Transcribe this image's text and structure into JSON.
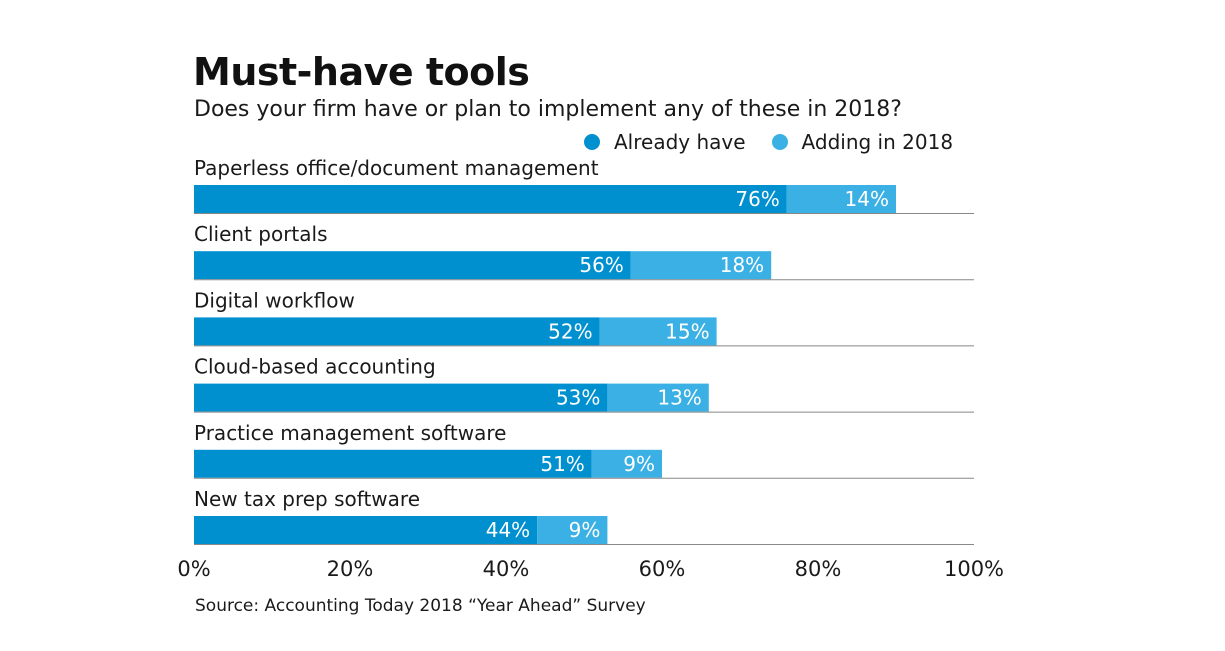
{
  "chart_data": {
    "type": "bar",
    "orientation": "horizontal",
    "stacked": true,
    "title": "Must-have tools",
    "subtitle": "Does your firm have or plan to implement any of these in 2018?",
    "source": "Source: Accounting Today 2018 “Year Ahead” Survey",
    "categories": [
      "Paperless office/document management",
      "Client portals",
      "Digital workflow",
      "Cloud-based accounting",
      "Practice management software",
      "New tax prep software"
    ],
    "series": [
      {
        "name": "Already have",
        "color": "#0090d0",
        "values": [
          76,
          56,
          52,
          53,
          51,
          44
        ],
        "labels": [
          "76%",
          "56%",
          "52%",
          "53%",
          "51%",
          "44%"
        ]
      },
      {
        "name": "Adding in 2018",
        "color": "#3ab0e4",
        "values": [
          14,
          18,
          15,
          13,
          9,
          9
        ],
        "labels": [
          "14%",
          "18%",
          "15%",
          "13%",
          "9%",
          "9%"
        ]
      }
    ],
    "xlim": [
      0,
      100
    ],
    "ticks": [
      0,
      20,
      40,
      60,
      80,
      100
    ],
    "tick_labels": [
      "0%",
      "20%",
      "40%",
      "60%",
      "80%",
      "100%"
    ],
    "grid": false,
    "legend_position": "top-right",
    "separator_color": "#888888"
  }
}
